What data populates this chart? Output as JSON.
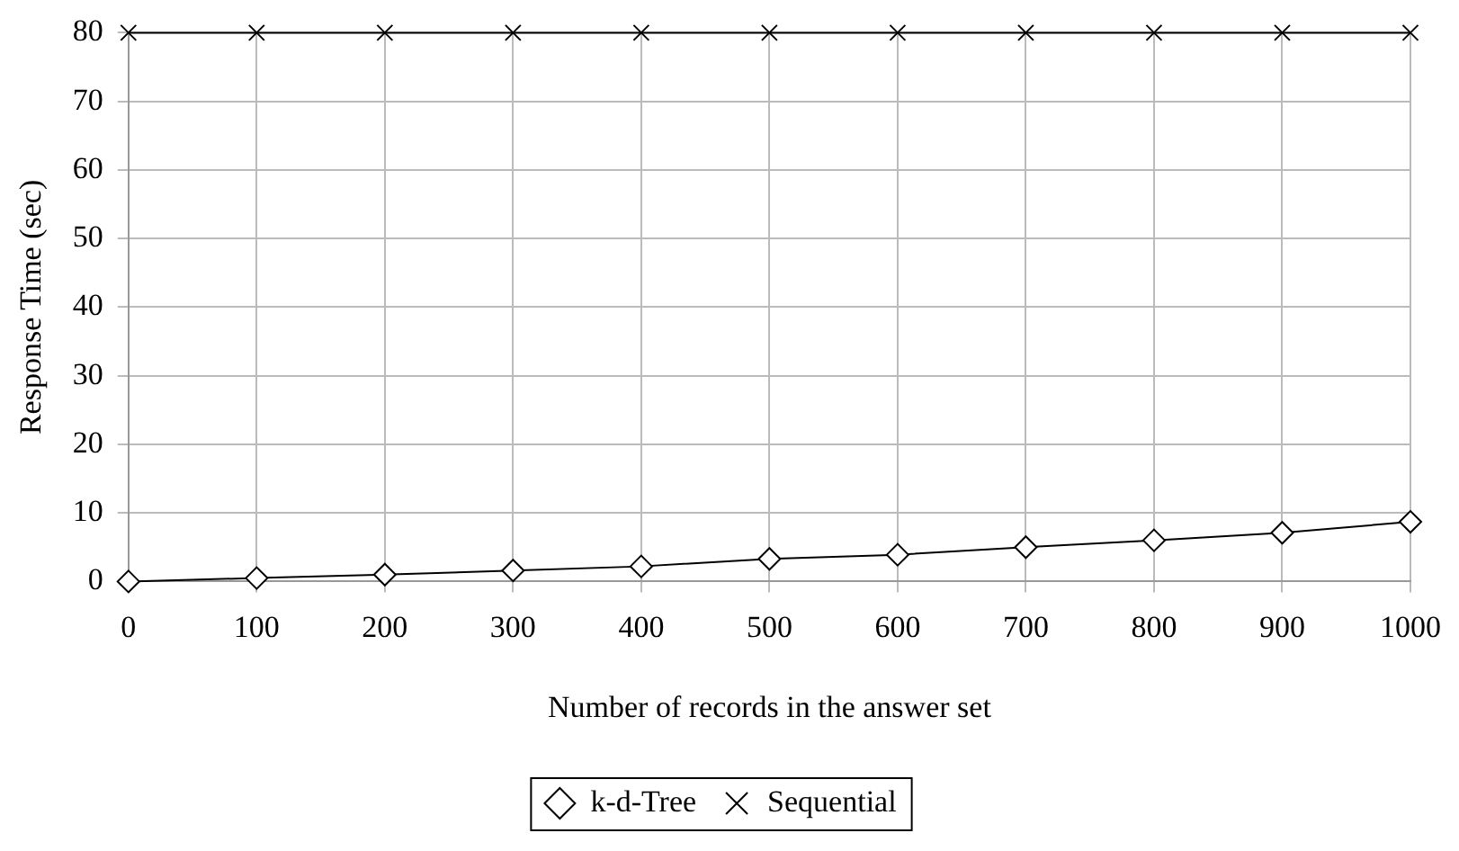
{
  "chart_data": {
    "type": "line",
    "xlabel": "Number of records in the answer set",
    "ylabel": "Response Time (sec)",
    "x": [
      0,
      100,
      200,
      300,
      400,
      500,
      600,
      700,
      800,
      900,
      1000
    ],
    "series": [
      {
        "name": "k-d-Tree",
        "color": "#000000",
        "marker": "diamond",
        "values": [
          0,
          0.5,
          1,
          1.6,
          2.2,
          3.3,
          3.9,
          5,
          6,
          7.1,
          8.7
        ]
      },
      {
        "name": "Sequential",
        "color": "#000000",
        "marker": "cross",
        "values": [
          80,
          80,
          80,
          80,
          80,
          80,
          80,
          80,
          80,
          80,
          80
        ]
      }
    ],
    "xlim": [
      0,
      1000
    ],
    "xticks": [
      0,
      100,
      200,
      300,
      400,
      500,
      600,
      700,
      800,
      900,
      1000
    ],
    "ylim": [
      0,
      80
    ],
    "yticks": [
      0,
      10,
      20,
      30,
      40,
      50,
      60,
      70,
      80
    ],
    "grid": true,
    "legend": "bottom",
    "line_style": "solid"
  }
}
